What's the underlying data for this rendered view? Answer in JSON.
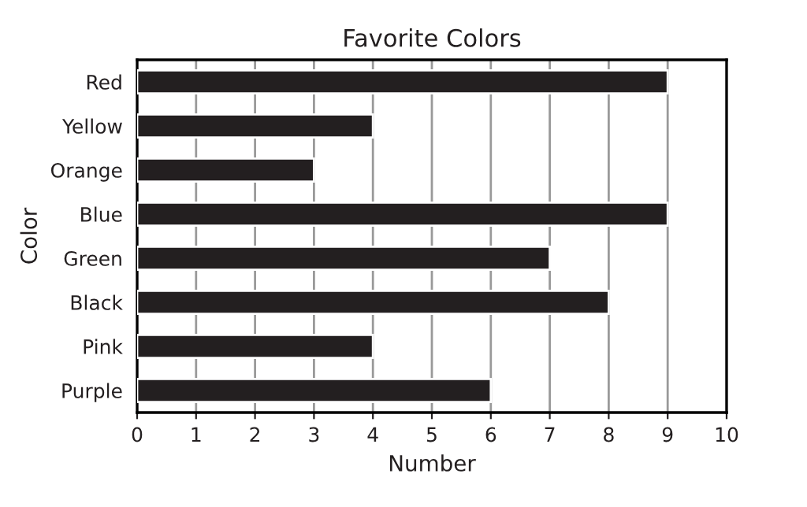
{
  "chart_data": {
    "type": "bar",
    "orientation": "horizontal",
    "title": "Favorite Colors",
    "xlabel": "Number",
    "ylabel": "Color",
    "categories": [
      "Red",
      "Yellow",
      "Orange",
      "Blue",
      "Green",
      "Black",
      "Pink",
      "Purple"
    ],
    "values": [
      9,
      4,
      3,
      9,
      7,
      8,
      4,
      6
    ],
    "color": "#231f20",
    "xlim": [
      0,
      10
    ],
    "xticks": [
      0,
      1,
      2,
      3,
      4,
      5,
      6,
      7,
      8,
      9,
      10
    ],
    "grid": "x"
  }
}
